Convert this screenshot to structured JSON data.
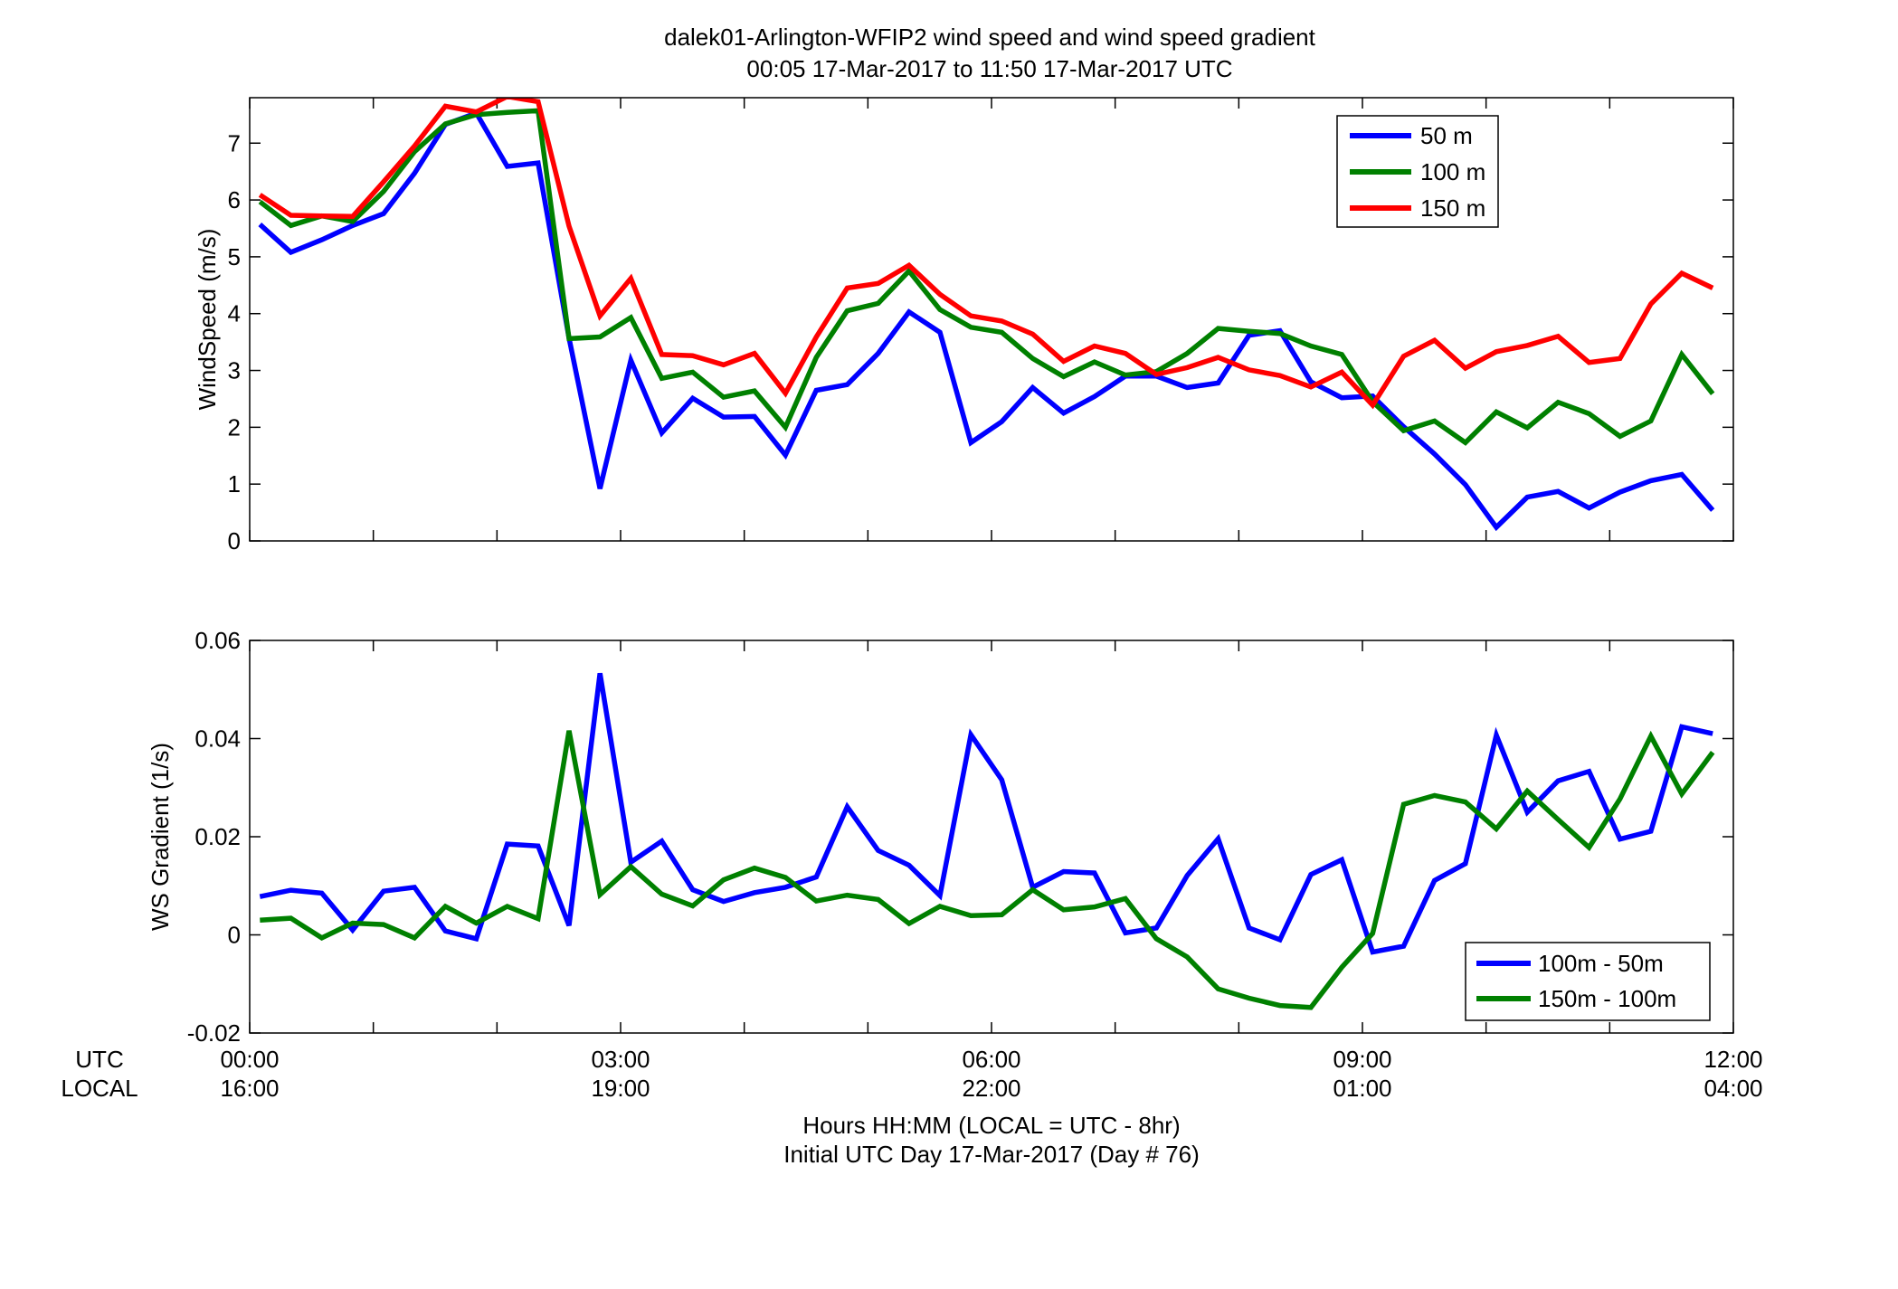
{
  "title": {
    "line1": "dalek01-Arlington-WFIP2  wind speed and wind speed gradient",
    "line2": "00:05 17-Mar-2017 to 11:50 17-Mar-2017  UTC"
  },
  "xaxis": {
    "utc_label": "UTC",
    "local_label": "LOCAL",
    "utc_ticks": [
      "00:00",
      "03:00",
      "06:00",
      "09:00",
      "12:00"
    ],
    "local_ticks": [
      "16:00",
      "19:00",
      "22:00",
      "01:00",
      "04:00"
    ],
    "tick_hours": [
      0,
      3,
      6,
      9,
      12
    ],
    "xlabel_line1": "Hours HH:MM  (LOCAL = UTC - 8hr)",
    "xlabel_line2": "Initial UTC Day 17-Mar-2017 (Day # 76)"
  },
  "colors": {
    "blue": "#0000ff",
    "green": "#008000",
    "red": "#ff0000"
  },
  "chart_data": [
    {
      "type": "line",
      "ylabel": "WindSpeed (m/s)",
      "xlim": [
        0,
        12
      ],
      "ylim": [
        0,
        7.8
      ],
      "yticks": [
        0,
        1,
        2,
        3,
        4,
        5,
        6,
        7
      ],
      "x_hours": [
        0.083,
        0.333,
        0.583,
        0.833,
        1.083,
        1.333,
        1.583,
        1.833,
        2.083,
        2.333,
        2.583,
        2.833,
        3.083,
        3.333,
        3.583,
        3.833,
        4.083,
        4.333,
        4.583,
        4.833,
        5.083,
        5.333,
        5.583,
        5.833,
        6.083,
        6.333,
        6.583,
        6.833,
        7.083,
        7.333,
        7.583,
        7.833,
        8.083,
        8.333,
        8.583,
        8.833,
        9.083,
        9.333,
        9.583,
        9.833,
        10.083,
        10.333,
        10.583,
        10.833,
        11.083,
        11.333,
        11.583,
        11.833
      ],
      "series": [
        {
          "name": "50 m",
          "color": "#0000ff",
          "values": [
            5.57,
            5.08,
            5.3,
            5.55,
            5.76,
            6.47,
            7.33,
            7.53,
            6.59,
            6.65,
            3.57,
            0.92,
            3.18,
            1.9,
            2.51,
            2.18,
            2.19,
            1.51,
            2.65,
            2.75,
            3.3,
            4.03,
            3.67,
            1.73,
            2.1,
            2.7,
            2.25,
            2.54,
            2.9,
            2.9,
            2.7,
            2.78,
            3.62,
            3.7,
            2.8,
            2.52,
            2.55,
            2.01,
            1.53,
            0.99,
            0.24,
            0.77,
            0.87,
            0.58,
            0.86,
            1.06,
            1.17,
            0.54
          ]
        },
        {
          "name": "100 m",
          "color": "#008000",
          "values": [
            5.97,
            5.55,
            5.72,
            5.62,
            6.15,
            6.85,
            7.34,
            7.5,
            7.54,
            7.57,
            3.56,
            3.59,
            3.93,
            2.86,
            2.97,
            2.53,
            2.64,
            2.0,
            3.23,
            4.05,
            4.18,
            4.75,
            4.07,
            3.76,
            3.67,
            3.21,
            2.89,
            3.15,
            2.92,
            2.98,
            3.3,
            3.74,
            3.69,
            3.65,
            3.43,
            3.28,
            2.45,
            1.94,
            2.11,
            1.73,
            2.27,
            1.99,
            2.44,
            2.24,
            1.84,
            2.11,
            3.28,
            2.59
          ]
        },
        {
          "name": "150 m",
          "color": "#ff0000",
          "values": [
            6.09,
            5.73,
            5.72,
            5.71,
            6.32,
            6.95,
            7.65,
            7.55,
            7.82,
            7.73,
            5.54,
            3.96,
            4.62,
            3.28,
            3.26,
            3.1,
            3.3,
            2.6,
            3.59,
            4.45,
            4.53,
            4.85,
            4.34,
            3.96,
            3.87,
            3.64,
            3.16,
            3.43,
            3.3,
            2.93,
            3.05,
            3.23,
            3.01,
            2.91,
            2.71,
            2.97,
            2.39,
            3.25,
            3.53,
            3.04,
            3.33,
            3.44,
            3.6,
            3.14,
            3.21,
            4.17,
            4.71,
            4.45
          ]
        }
      ],
      "legend": {
        "location": "top-right"
      }
    },
    {
      "type": "line",
      "ylabel": "WS Gradient (1/s)",
      "xlim": [
        0,
        12
      ],
      "ylim": [
        -0.02,
        0.06
      ],
      "yticks": [
        -0.02,
        0,
        0.02,
        0.04,
        0.06
      ],
      "ytick_labels": [
        "-0.02",
        "0",
        "0.02",
        "0.04",
        "0.06"
      ],
      "x_hours": [
        0.083,
        0.333,
        0.583,
        0.833,
        1.083,
        1.333,
        1.583,
        1.833,
        2.083,
        2.333,
        2.583,
        2.833,
        3.083,
        3.333,
        3.583,
        3.833,
        4.083,
        4.333,
        4.583,
        4.833,
        5.083,
        5.333,
        5.583,
        5.833,
        6.083,
        6.333,
        6.583,
        6.833,
        7.083,
        7.333,
        7.583,
        7.833,
        8.083,
        8.333,
        8.583,
        8.833,
        9.083,
        9.333,
        9.583,
        9.833,
        10.083,
        10.333,
        10.583,
        10.833,
        11.083,
        11.333,
        11.583,
        11.833
      ],
      "series": [
        {
          "name": "100m - 50m",
          "color": "#0000ff",
          "values": [
            0.0078,
            0.0091,
            0.0085,
            0.001,
            0.0089,
            0.0097,
            0.0008,
            -0.0008,
            0.0185,
            0.0181,
            0.0019,
            0.0533,
            0.0148,
            0.0191,
            0.0092,
            0.0068,
            0.0086,
            0.0097,
            0.0118,
            0.0261,
            0.0172,
            0.0142,
            0.008,
            0.0408,
            0.0316,
            0.0097,
            0.0129,
            0.0126,
            0.0004,
            0.0014,
            0.0121,
            0.0196,
            0.0014,
            -0.001,
            0.0123,
            0.0153,
            -0.0035,
            -0.0023,
            0.0111,
            0.0145,
            0.0407,
            0.025,
            0.0314,
            0.0333,
            0.0195,
            0.0211,
            0.0424,
            0.041
          ]
        },
        {
          "name": "150m - 100m",
          "color": "#008000",
          "values": [
            0.003,
            0.0034,
            -0.0006,
            0.0024,
            0.0021,
            -0.0006,
            0.0058,
            0.0024,
            0.0058,
            0.0033,
            0.0416,
            0.0082,
            0.0139,
            0.0083,
            0.0059,
            0.0112,
            0.0136,
            0.0117,
            0.0069,
            0.0081,
            0.0072,
            0.0023,
            0.0058,
            0.0039,
            0.0041,
            0.0092,
            0.0051,
            0.0057,
            0.0074,
            -0.0008,
            -0.0045,
            -0.011,
            -0.0129,
            -0.0144,
            -0.0148,
            -0.0066,
            0.0003,
            0.0266,
            0.0284,
            0.0271,
            0.0216,
            0.0293,
            0.0235,
            0.0178,
            0.0277,
            0.0405,
            0.0287,
            0.0372
          ]
        }
      ],
      "legend": {
        "location": "bottom-right"
      }
    }
  ]
}
